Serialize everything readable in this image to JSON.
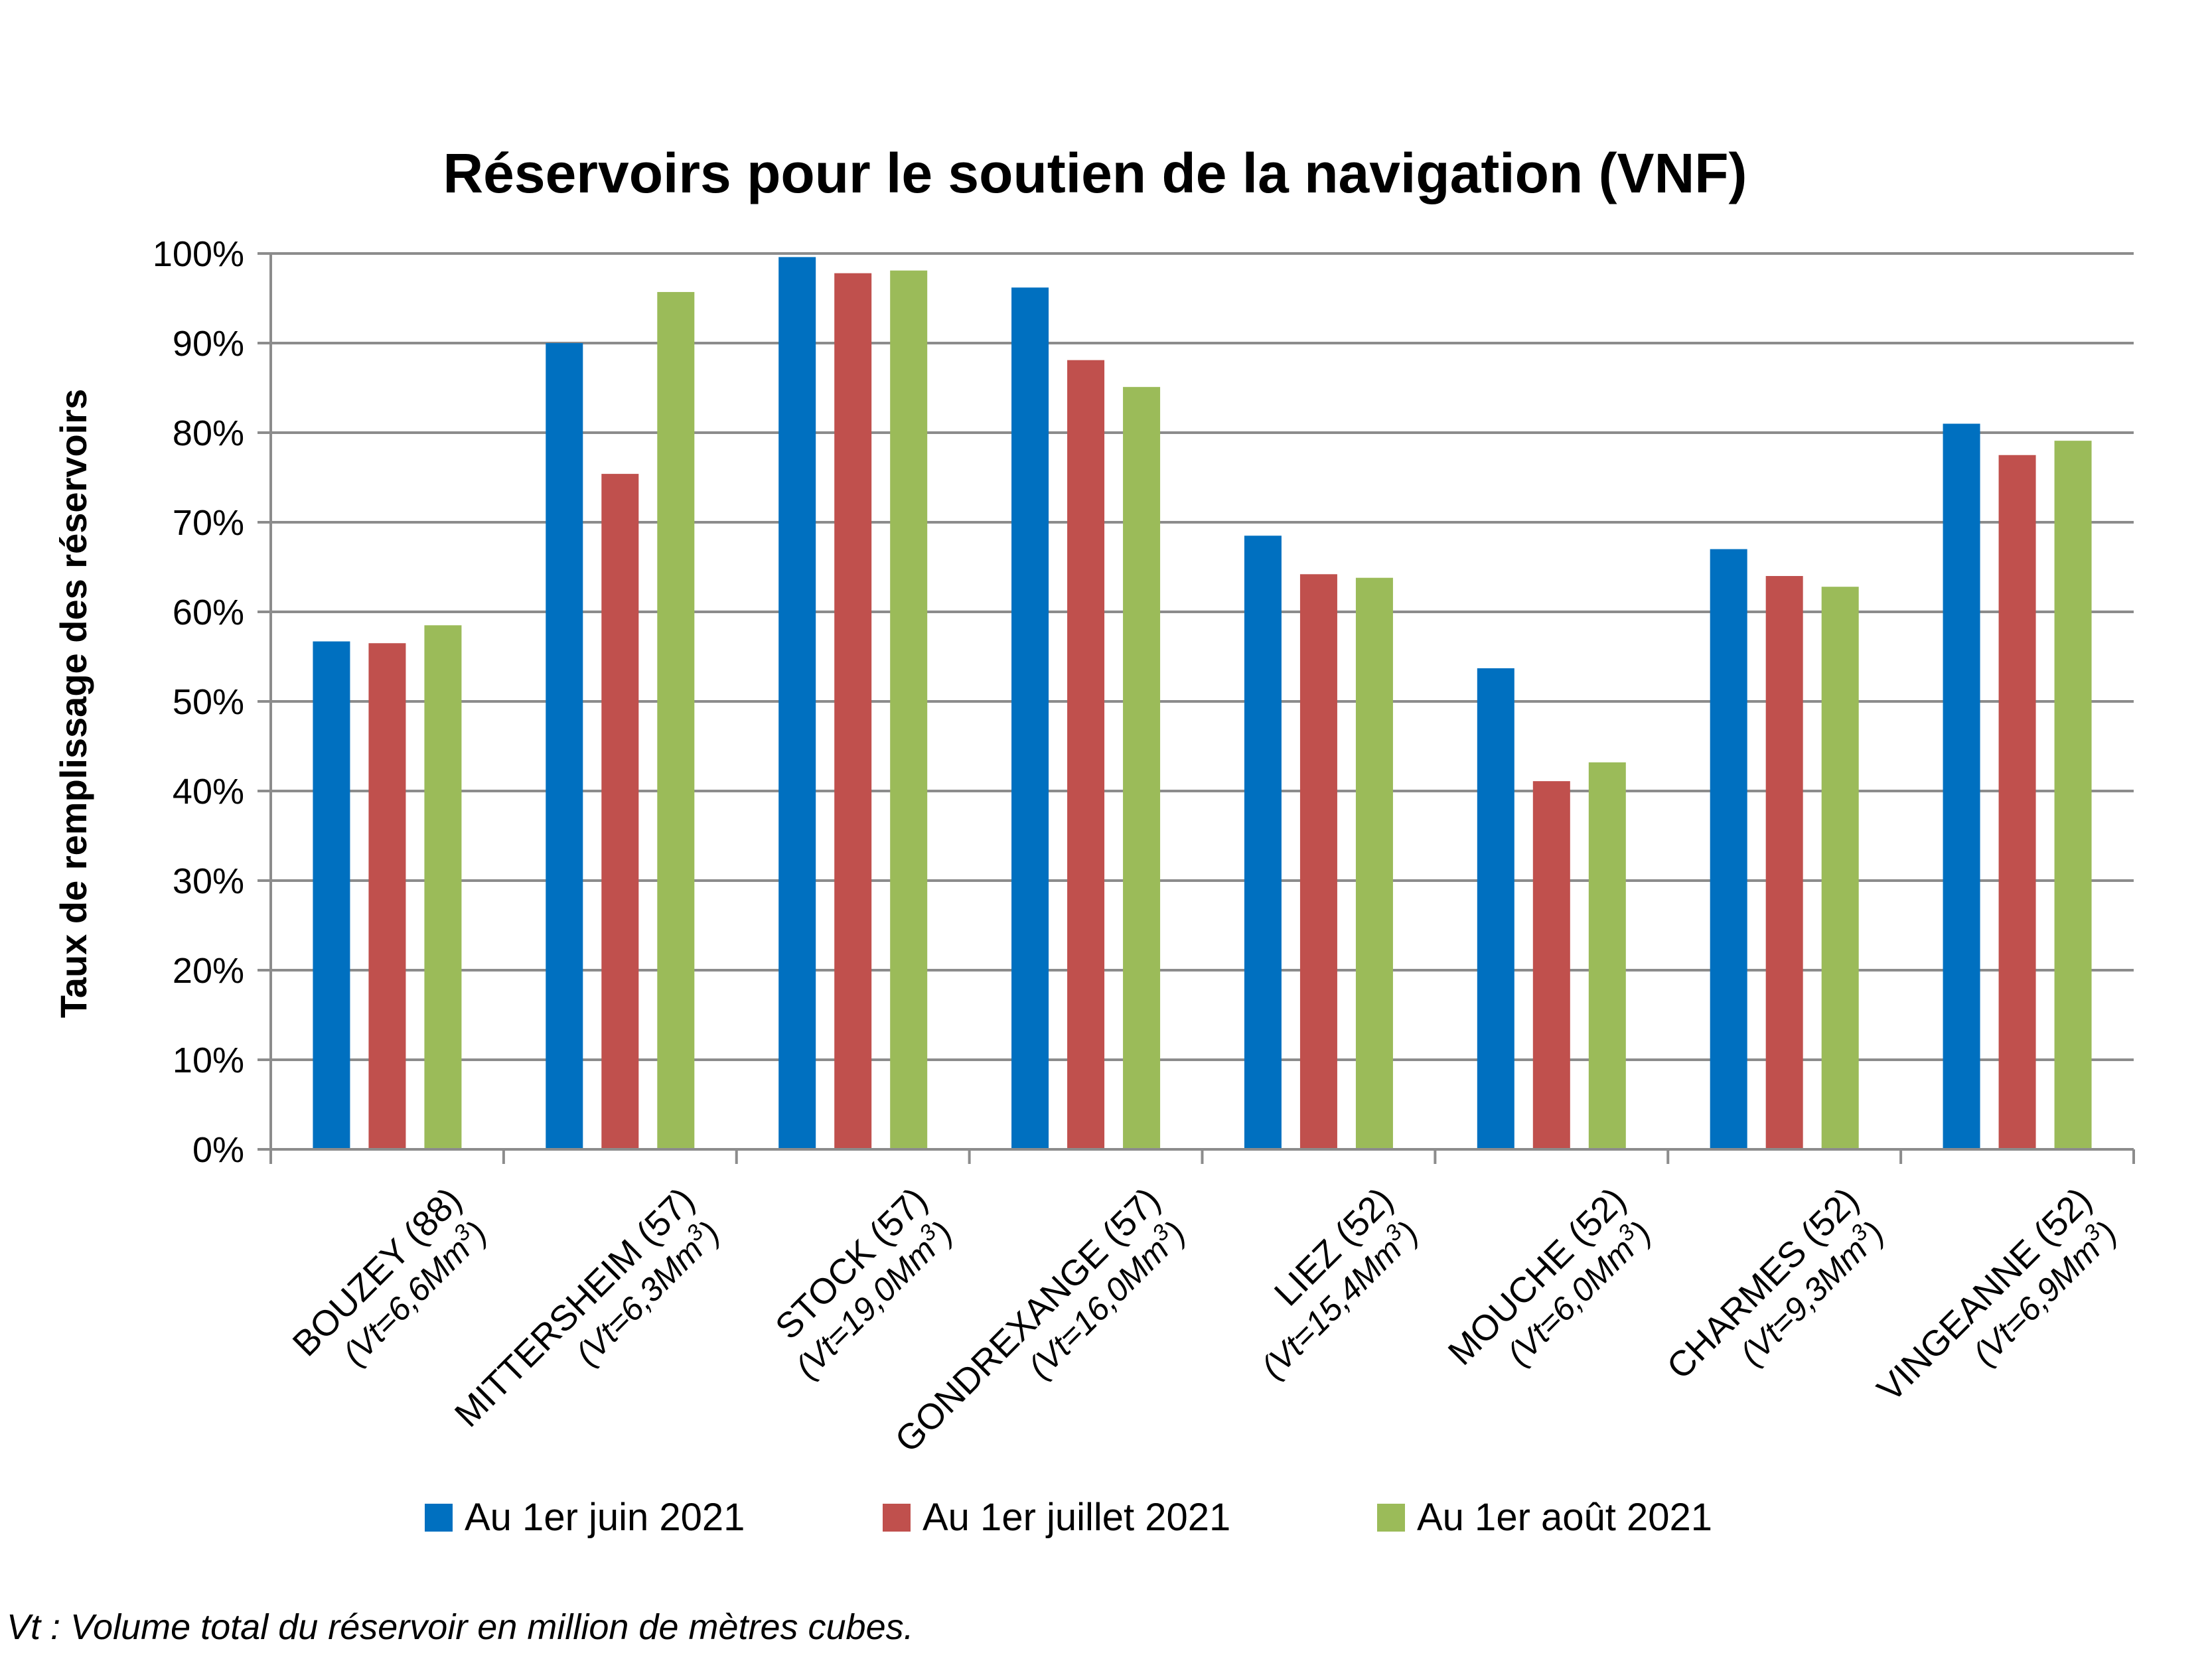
{
  "chart_data": {
    "type": "bar",
    "title": "Réservoirs pour le soutien de la navigation (VNF)",
    "ylabel": "Taux de remplissage des réservoirs",
    "xlabel": "",
    "ylim": [
      0,
      100
    ],
    "yticks": [
      "0%",
      "10%",
      "20%",
      "30%",
      "40%",
      "50%",
      "60%",
      "70%",
      "80%",
      "90%",
      "100%"
    ],
    "grid": true,
    "legend_position": "bottom",
    "categories": [
      {
        "name": "BOUZEY (88)",
        "vt": "(Vt=6,6Mm",
        "sup": "3",
        "close": ")"
      },
      {
        "name": "MITTERSHEIM (57)",
        "vt": "(Vt=6,3Mm",
        "sup": "3",
        "close": ")"
      },
      {
        "name": "STOCK (57)",
        "vt": "(Vt=19,0Mm",
        "sup": "3",
        "close": ")"
      },
      {
        "name": "GONDREXANGE (57)",
        "vt": "(Vt=16,0Mm",
        "sup": "3",
        "close": ")"
      },
      {
        "name": "LIEZ (52)",
        "vt": "(Vt=15,4Mm",
        "sup": "3",
        "close": ")"
      },
      {
        "name": "MOUCHE (52)",
        "vt": "(Vt=6,0Mm",
        "sup": "3",
        "close": ")"
      },
      {
        "name": "CHARMES (52)",
        "vt": "(Vt=9,3Mm",
        "sup": "3",
        "close": ")"
      },
      {
        "name": "VINGEANNE (52)",
        "vt": "(Vt=6,9Mm",
        "sup": "3",
        "close": ")"
      }
    ],
    "series": [
      {
        "name": "Au 1er juin 2021",
        "color": "#0070C0",
        "values": [
          56.7,
          90.0,
          99.6,
          96.2,
          68.5,
          53.7,
          67.0,
          81.0
        ]
      },
      {
        "name": "Au 1er juillet 2021",
        "color": "#C0504D",
        "values": [
          56.5,
          75.4,
          97.8,
          88.1,
          64.2,
          41.1,
          64.0,
          77.5
        ]
      },
      {
        "name": "Au 1er août 2021",
        "color": "#9BBB59",
        "values": [
          58.5,
          95.7,
          98.1,
          85.1,
          63.8,
          43.2,
          62.8,
          79.1
        ]
      }
    ],
    "footnote": "Vt : Volume total du réservoir en million de mètres cubes."
  }
}
